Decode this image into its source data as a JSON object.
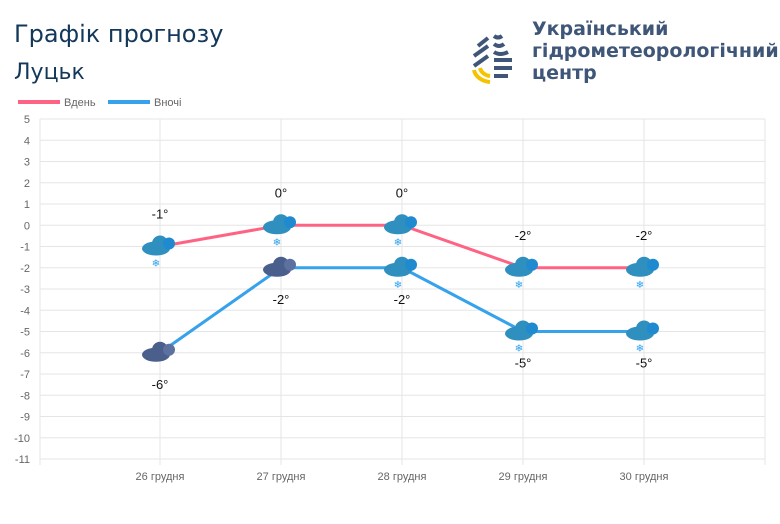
{
  "header": {
    "title": "Графік прогнозу",
    "city": "Луцьк",
    "org": [
      "Український",
      "гідрометеорологічний",
      "центр"
    ]
  },
  "chart_data": {
    "type": "line",
    "categories": [
      "26 грудня",
      "27 грудня",
      "28 грудня",
      "29 грудня",
      "30 грудня"
    ],
    "ylim": [
      -11,
      5
    ],
    "yticks": [
      5,
      4,
      3,
      2,
      1,
      0,
      -1,
      -2,
      -3,
      -4,
      -5,
      -6,
      -7,
      -8,
      -9,
      -10,
      -11
    ],
    "grid": true,
    "legend": "top-left",
    "series": [
      {
        "name": "Вдень",
        "color": "#ff6384",
        "values": [
          -1,
          0,
          0,
          -2,
          -2
        ],
        "labels": [
          "-1°",
          "0°",
          "0°",
          "-2°",
          "-2°"
        ]
      },
      {
        "name": "Вночі",
        "color": "#36a2eb",
        "values": [
          -6,
          -2,
          -2,
          -5,
          -5
        ],
        "labels": [
          "-6°",
          "-2°",
          "-2°",
          "-5°",
          "-5°"
        ]
      }
    ],
    "icons": {
      "day": [
        "cloud-snow",
        "cloud-snow",
        "cloud-snow",
        "cloud-snow",
        "cloud-snow"
      ],
      "night": [
        "dark-cloud",
        "dark-cloud",
        "cloud-snow",
        "cloud-snow",
        "cloud-snow"
      ]
    }
  }
}
